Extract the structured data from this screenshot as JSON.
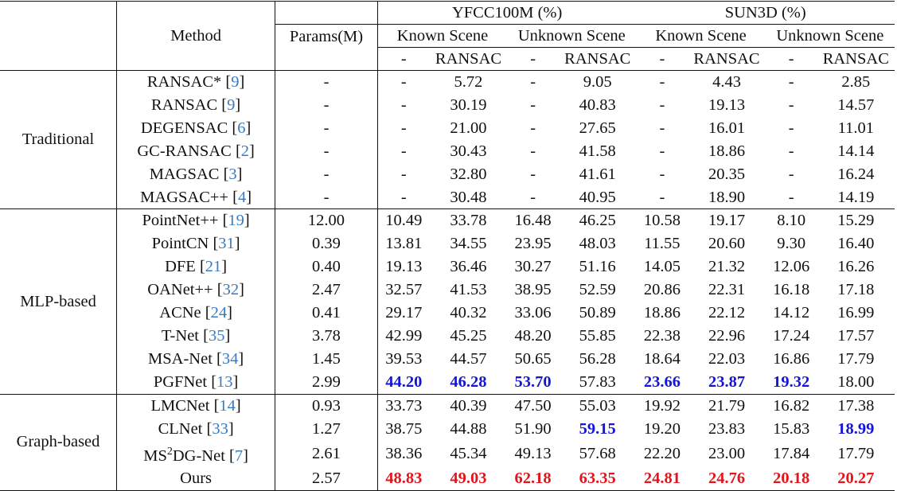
{
  "header": {
    "method_label": "Method",
    "params_label": "Params(M)",
    "datasets": [
      {
        "name": "YFCC100M (%)",
        "scenes": [
          "Known Scene",
          "Unknown Scene"
        ]
      },
      {
        "name": "SUN3D (%)",
        "scenes": [
          "Known Scene",
          "Unknown Scene"
        ]
      }
    ],
    "subcols": [
      "-",
      "RANSAC",
      "-",
      "RANSAC",
      "-",
      "RANSAC",
      "-",
      "RANSAC"
    ]
  },
  "groups": [
    {
      "name": "Traditional",
      "rows": [
        {
          "method": "RANSAC*",
          "cite": "9",
          "params": "-",
          "values": [
            "-",
            "5.72",
            "-",
            "9.05",
            "-",
            "4.43",
            "-",
            "2.85"
          ]
        },
        {
          "method": "RANSAC",
          "cite": "9",
          "params": "-",
          "values": [
            "-",
            "30.19",
            "-",
            "40.83",
            "-",
            "19.13",
            "-",
            "14.57"
          ]
        },
        {
          "method": "DEGENSAC",
          "cite": "6",
          "params": "-",
          "values": [
            "-",
            "21.00",
            "-",
            "27.65",
            "-",
            "16.01",
            "-",
            "11.01"
          ]
        },
        {
          "method": "GC-RANSAC",
          "cite": "2",
          "params": "-",
          "values": [
            "-",
            "30.43",
            "-",
            "41.58",
            "-",
            "18.86",
            "-",
            "14.14"
          ]
        },
        {
          "method": "MAGSAC",
          "cite": "3",
          "params": "-",
          "values": [
            "-",
            "32.80",
            "-",
            "41.61",
            "-",
            "20.35",
            "-",
            "16.24"
          ]
        },
        {
          "method": "MAGSAC++",
          "cite": "4",
          "params": "-",
          "values": [
            "-",
            "30.48",
            "-",
            "40.95",
            "-",
            "18.90",
            "-",
            "14.19"
          ]
        }
      ]
    },
    {
      "name": "MLP-based",
      "rows": [
        {
          "method": "PointNet++",
          "cite": "19",
          "params": "12.00",
          "values": [
            "10.49",
            "33.78",
            "16.48",
            "46.25",
            "10.58",
            "19.17",
            "8.10",
            "15.29"
          ]
        },
        {
          "method": "PointCN",
          "cite": "31",
          "params": "0.39",
          "values": [
            "13.81",
            "34.55",
            "23.95",
            "48.03",
            "11.55",
            "20.60",
            "9.30",
            "16.40"
          ]
        },
        {
          "method": "DFE",
          "cite": "21",
          "params": "0.40",
          "values": [
            "19.13",
            "36.46",
            "30.27",
            "51.16",
            "14.05",
            "21.32",
            "12.06",
            "16.26"
          ]
        },
        {
          "method": "OANet++",
          "cite": "32",
          "params": "2.47",
          "values": [
            "32.57",
            "41.53",
            "38.95",
            "52.59",
            "20.86",
            "22.31",
            "16.18",
            "17.18"
          ]
        },
        {
          "method": "ACNe",
          "cite": "24",
          "params": "0.41",
          "values": [
            "29.17",
            "40.32",
            "33.06",
            "50.89",
            "18.86",
            "22.12",
            "14.12",
            "16.99"
          ]
        },
        {
          "method": "T-Net",
          "cite": "35",
          "params": "3.78",
          "values": [
            "42.99",
            "45.25",
            "48.20",
            "55.85",
            "22.38",
            "22.96",
            "17.24",
            "17.57"
          ]
        },
        {
          "method": "MSA-Net",
          "cite": "34",
          "params": "1.45",
          "values": [
            "39.53",
            "44.57",
            "50.65",
            "56.28",
            "18.64",
            "22.03",
            "16.86",
            "17.79"
          ]
        },
        {
          "method": "PGFNet",
          "cite": "13",
          "params": "2.99",
          "values": [
            "44.20",
            "46.28",
            "53.70",
            "57.83",
            "23.66",
            "23.87",
            "19.32",
            "18.00"
          ],
          "highlight": [
            "second",
            "second",
            "second",
            "",
            "second",
            "second",
            "second",
            ""
          ]
        }
      ]
    },
    {
      "name": "Graph-based",
      "rows": [
        {
          "method": "LMCNet",
          "cite": "14",
          "params": "0.93",
          "values": [
            "33.73",
            "40.39",
            "47.50",
            "55.03",
            "19.92",
            "21.79",
            "16.82",
            "17.38"
          ]
        },
        {
          "method": "CLNet",
          "cite": "33",
          "params": "1.27",
          "values": [
            "38.75",
            "44.88",
            "51.90",
            "59.15",
            "19.20",
            "23.83",
            "15.83",
            "18.99"
          ],
          "highlight": [
            "",
            "",
            "",
            "second",
            "",
            "",
            "",
            "second"
          ]
        },
        {
          "method": "MS",
          "method_sup": "2",
          "method_suffix": "DG-Net",
          "cite": "7",
          "params": "2.61",
          "values": [
            "38.36",
            "45.34",
            "49.13",
            "57.68",
            "22.20",
            "23.00",
            "17.84",
            "17.79"
          ]
        },
        {
          "method": "Ours",
          "cite": "",
          "params": "2.57",
          "values": [
            "48.83",
            "49.03",
            "62.18",
            "63.35",
            "24.81",
            "24.76",
            "20.18",
            "20.27"
          ],
          "highlight": [
            "best",
            "best",
            "best",
            "best",
            "best",
            "best",
            "best",
            "best"
          ]
        }
      ]
    }
  ],
  "colors": {
    "best": "#e3141b",
    "second_best": "#1414d8",
    "citation": "#3a7bbf"
  }
}
